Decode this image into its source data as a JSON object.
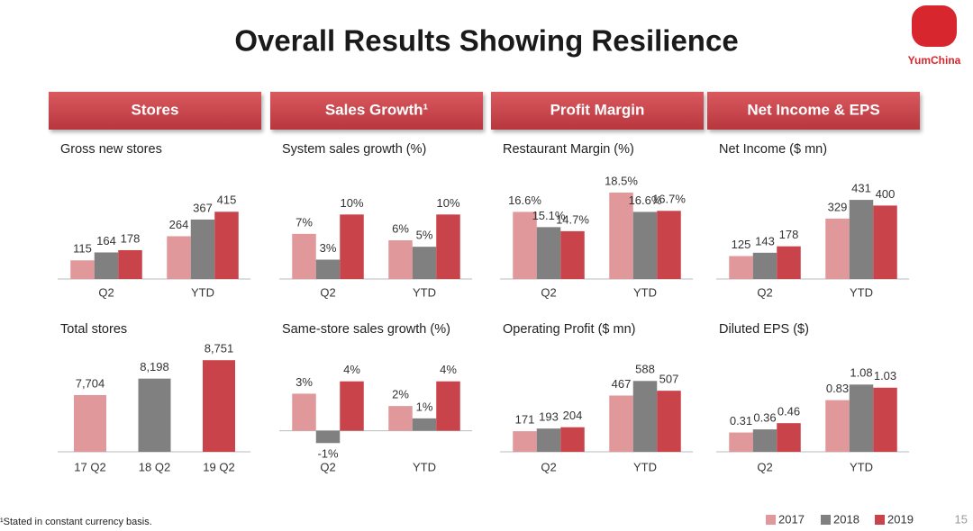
{
  "header": {
    "title": "Overall Results Showing Resilience",
    "logo": "YumChina"
  },
  "sections": [
    "Stores",
    "Sales Growth¹",
    "Profit Margin",
    "Net Income & EPS"
  ],
  "chart_data": [
    {
      "type": "bar",
      "title": "Gross new stores",
      "categories": [
        "Q2",
        "YTD"
      ],
      "ylim": [
        0,
        450
      ],
      "series": [
        {
          "name": "2017",
          "color": "#e0989b",
          "values": [
            115,
            264
          ]
        },
        {
          "name": "2018",
          "color": "#808080",
          "values": [
            164,
            367
          ]
        },
        {
          "name": "2019",
          "color": "#c8434a",
          "values": [
            178,
            415
          ]
        }
      ]
    },
    {
      "type": "bar",
      "title": "Total stores",
      "categories": [
        "17 Q2",
        "18 Q2",
        "19 Q2"
      ],
      "ylim": [
        6000,
        9000
      ],
      "values": [
        7704,
        8198,
        8751
      ],
      "value_labels": [
        "7,704",
        "8,198",
        "8,751"
      ],
      "colors": [
        "#e0989b",
        "#808080",
        "#c8434a"
      ]
    },
    {
      "type": "bar",
      "title": "System sales growth (%)",
      "categories": [
        "Q2",
        "YTD"
      ],
      "ylim": [
        0,
        12
      ],
      "series": [
        {
          "name": "2017",
          "color": "#e0989b",
          "values": [
            7,
            6
          ],
          "value_labels": [
            "7%",
            "6%"
          ]
        },
        {
          "name": "2018",
          "color": "#808080",
          "values": [
            3,
            5
          ],
          "value_labels": [
            "3%",
            "5%"
          ]
        },
        {
          "name": "2019",
          "color": "#c8434a",
          "values": [
            10,
            10
          ],
          "value_labels": [
            "10%",
            "10%"
          ]
        }
      ]
    },
    {
      "type": "bar",
      "title": "Same-store sales growth (%)",
      "categories": [
        "Q2",
        "YTD"
      ],
      "ylim": [
        -2,
        5
      ],
      "series": [
        {
          "name": "2017",
          "color": "#e0989b",
          "values": [
            3,
            2
          ],
          "value_labels": [
            "3%",
            "2%"
          ]
        },
        {
          "name": "2018",
          "color": "#808080",
          "values": [
            -1,
            1
          ],
          "value_labels": [
            "-1%",
            "1%"
          ]
        },
        {
          "name": "2019",
          "color": "#c8434a",
          "values": [
            4,
            4
          ],
          "value_labels": [
            "4%",
            "4%"
          ]
        }
      ]
    },
    {
      "type": "bar",
      "title": "Restaurant Margin (%)",
      "categories": [
        "Q2",
        "YTD"
      ],
      "ylim": [
        10,
        20
      ],
      "series": [
        {
          "name": "2017",
          "color": "#e0989b",
          "values": [
            16.6,
            18.5
          ],
          "value_labels": [
            "16.6%",
            "18.5%"
          ]
        },
        {
          "name": "2018",
          "color": "#808080",
          "values": [
            15.1,
            16.6
          ],
          "value_labels": [
            "15.1%",
            "16.6%"
          ]
        },
        {
          "name": "2019",
          "color": "#c8434a",
          "values": [
            14.7,
            16.7
          ],
          "value_labels": [
            "14.7%",
            "16.7%"
          ]
        }
      ]
    },
    {
      "type": "bar",
      "title": "Operating Profit ($ mn)",
      "categories": [
        "Q2",
        "YTD"
      ],
      "ylim": [
        0,
        650
      ],
      "series": [
        {
          "name": "2017",
          "color": "#e0989b",
          "values": [
            171,
            467
          ]
        },
        {
          "name": "2018",
          "color": "#808080",
          "values": [
            193,
            588
          ]
        },
        {
          "name": "2019",
          "color": "#c8434a",
          "values": [
            204,
            507
          ]
        }
      ]
    },
    {
      "type": "bar",
      "title": "Net Income ($ mn)",
      "categories": [
        "Q2",
        "YTD"
      ],
      "ylim": [
        0,
        500
      ],
      "series": [
        {
          "name": "2017",
          "color": "#e0989b",
          "values": [
            125,
            329
          ]
        },
        {
          "name": "2018",
          "color": "#808080",
          "values": [
            143,
            431
          ]
        },
        {
          "name": "2019",
          "color": "#c8434a",
          "values": [
            178,
            400
          ]
        }
      ]
    },
    {
      "type": "bar",
      "title": "Diluted EPS ($)",
      "categories": [
        "Q2",
        "YTD"
      ],
      "ylim": [
        0,
        1.2
      ],
      "series": [
        {
          "name": "2017",
          "color": "#e0989b",
          "values": [
            0.31,
            0.83
          ]
        },
        {
          "name": "2018",
          "color": "#808080",
          "values": [
            0.36,
            1.08
          ]
        },
        {
          "name": "2019",
          "color": "#c8434a",
          "values": [
            0.46,
            1.03
          ]
        }
      ]
    }
  ],
  "footnote": "¹Stated in constant currency basis.",
  "page_number": "15"
}
